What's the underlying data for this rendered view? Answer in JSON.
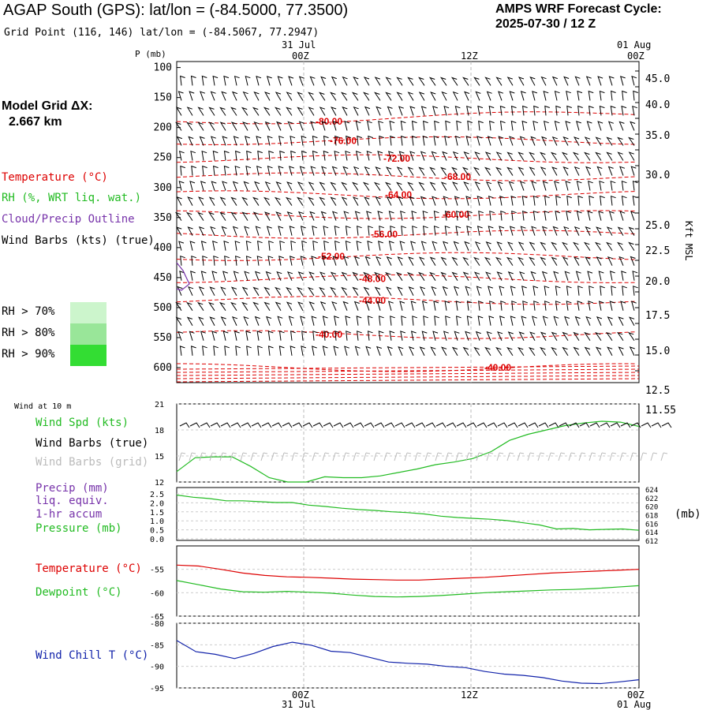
{
  "header": {
    "title": "AGAP South (GPS):  lat/lon = (-84.5000, 77.3500)",
    "subtitle": "Grid Point (116, 146) lat/lon = (-84.5067, 77.2947)",
    "cycle_title": "AMPS WRF Forecast Cycle:",
    "cycle_date": "2025-07-30 / 12  Z"
  },
  "time_axis": {
    "top_dates": [
      "31 Jul",
      "01 Aug"
    ],
    "tick_labels": [
      "00Z",
      "12Z",
      "00Z"
    ],
    "bottom_tick_labels": [
      "00Z",
      "12Z",
      "00Z"
    ],
    "bottom_dates": [
      "31 Jul",
      "01 Aug"
    ]
  },
  "model": {
    "label": "Model Grid ΔX:",
    "value": "2.667 km"
  },
  "legend": {
    "temperature": "Temperature (°C)",
    "rh": "RH (%, WRT liq. wat.)",
    "cloud": "Cloud/Precip Outline",
    "wind_barbs": "Wind Barbs (kts) (true)",
    "rh70": "RH > 70%",
    "rh80": "RH > 80%",
    "rh90": "RH > 90%"
  },
  "colors": {
    "temperature": "#dd0000",
    "rh": "#22bb22",
    "cloud": "#7733aa",
    "barbs": "#000000",
    "grid_barbs": "#bbbbbb",
    "pressure": "#22bb22",
    "precip": "#7733aa",
    "dewpoint": "#22bb22",
    "windchill": "#1122aa",
    "rh70": "#ccf5cc",
    "rh80": "#99e699",
    "rh90": "#33dd33"
  },
  "axes_labels": {
    "pressure_left": "P (mb)",
    "kft_right": "Kft MSL",
    "mb_unit": "(mb)"
  },
  "panels": {
    "wind10_title": "Wind at 10 m",
    "wind_spd": "Wind Spd (kts)",
    "wind_barbs_true": "Wind Barbs (true)",
    "wind_barbs_grid": "Wind Barbs (grid)",
    "precip": "Precip (mm)",
    "liq_equiv": "liq. equiv.",
    "accum": "1-hr accum",
    "pressure": "Pressure (mb)",
    "temperature": "Temperature (°C)",
    "dewpoint": "Dewpoint (°C)",
    "windchill": "Wind Chill T (°C)"
  },
  "chart_data": [
    {
      "type": "line",
      "subtype": "time-height cross section",
      "ylabel": "P (mb)",
      "y_ticks_left": [
        "100",
        "150",
        "200",
        "250",
        "300",
        "350",
        "400",
        "450",
        "500",
        "550",
        "600"
      ],
      "y_ticks_right": [
        "45.0",
        "40.0",
        "35.0",
        "30.0",
        "25.0",
        "22.5",
        "20.0",
        "17.5",
        "15.0",
        "12.5",
        "11.55"
      ],
      "y2label": "Kft MSL",
      "x_ticks": [
        "00Z",
        "12Z",
        "00Z"
      ],
      "temperature_contours": [
        {
          "label": "-80.00",
          "pressure": 190
        },
        {
          "label": "-76.00",
          "pressure": 222
        },
        {
          "label": "-72.00",
          "pressure": 252
        },
        {
          "label": "-68.00",
          "pressure": 282
        },
        {
          "label": "-64.00",
          "pressure": 312
        },
        {
          "label": "-60.00",
          "pressure": 345
        },
        {
          "label": "-56.00",
          "pressure": 378
        },
        {
          "label": "-52.00",
          "pressure": 415
        },
        {
          "label": "-48.00",
          "pressure": 452
        },
        {
          "label": "-44.00",
          "pressure": 488
        },
        {
          "label": "-40.00",
          "pressure": 545
        },
        {
          "label": "-40.00",
          "pressure": 600
        }
      ]
    },
    {
      "type": "line",
      "title": "Wind at 10 m",
      "ylabel": "Wind Spd (kts)",
      "y_ticks": [
        "21",
        "18",
        "15",
        "12"
      ],
      "ylim": [
        12,
        21
      ],
      "series": [
        {
          "name": "Wind Spd (kts)",
          "values": [
            13.2,
            14.8,
            14.9,
            14.9,
            13.8,
            12.5,
            12.0,
            12.0,
            12.6,
            12.5,
            12.5,
            12.7,
            13.1,
            13.5,
            14.0,
            14.3,
            14.7,
            15.5,
            16.8,
            17.5,
            18.0,
            18.5,
            18.8,
            19.0,
            18.9,
            18.4
          ]
        }
      ]
    },
    {
      "type": "line",
      "ylabel": "Precip (mm)",
      "y_ticks_left": [
        "2.5",
        "2.0",
        "1.5",
        "1.0",
        "0.5",
        "0.0"
      ],
      "y_ticks_right": [
        "624",
        "622",
        "620",
        "618",
        "616",
        "614",
        "612"
      ],
      "y2label": "(mb)",
      "series": [
        {
          "name": "Pressure (mb)",
          "values": [
            622.3,
            621.8,
            621.5,
            621.0,
            621.0,
            620.8,
            620.6,
            620.6,
            620.0,
            619.7,
            619.3,
            619.0,
            618.8,
            618.5,
            618.3,
            618.0,
            617.5,
            617.2,
            617.0,
            616.8,
            616.5,
            616.0,
            615.5,
            614.6,
            614.7,
            614.4,
            614.5,
            614.6,
            614.3
          ]
        },
        {
          "name": "Precip (mm)",
          "values": [
            0,
            0,
            0,
            0,
            0,
            0,
            0,
            0,
            0,
            0,
            0,
            0,
            0,
            0,
            0,
            0,
            0,
            0,
            0,
            0,
            0,
            0,
            0,
            0,
            0,
            0,
            0,
            0,
            0
          ]
        }
      ]
    },
    {
      "type": "line",
      "y_ticks": [
        "-55",
        "-60",
        "-65"
      ],
      "ylim": [
        -65,
        -50
      ],
      "series": [
        {
          "name": "Temperature (°C)",
          "values": [
            -54.1,
            -54.3,
            -55.0,
            -55.8,
            -56.3,
            -56.6,
            -56.7,
            -56.9,
            -57.1,
            -57.2,
            -57.3,
            -57.3,
            -57.1,
            -56.9,
            -56.7,
            -56.4,
            -56.1,
            -55.8,
            -55.6,
            -55.4,
            -55.2,
            -55.0
          ]
        },
        {
          "name": "Dewpoint (°C)",
          "values": [
            -57.4,
            -58.3,
            -59.2,
            -59.8,
            -59.9,
            -59.7,
            -59.9,
            -60.1,
            -60.5,
            -60.8,
            -60.9,
            -60.8,
            -60.6,
            -60.3,
            -60.0,
            -59.8,
            -59.6,
            -59.4,
            -59.3,
            -59.1,
            -58.8,
            -58.5
          ]
        }
      ]
    },
    {
      "type": "line",
      "y_ticks": [
        "-80",
        "-85",
        "-90",
        "-95"
      ],
      "ylim": [
        -95,
        -80
      ],
      "series": [
        {
          "name": "Wind Chill T (°C)",
          "values": [
            -84.0,
            -86.6,
            -87.2,
            -88.2,
            -87.0,
            -85.4,
            -84.4,
            -85.1,
            -86.5,
            -86.8,
            -87.9,
            -89.0,
            -89.3,
            -89.5,
            -90.0,
            -90.3,
            -91.2,
            -91.8,
            -92.1,
            -92.6,
            -93.4,
            -93.9,
            -94.0,
            -93.6,
            -93.1
          ]
        }
      ]
    }
  ]
}
